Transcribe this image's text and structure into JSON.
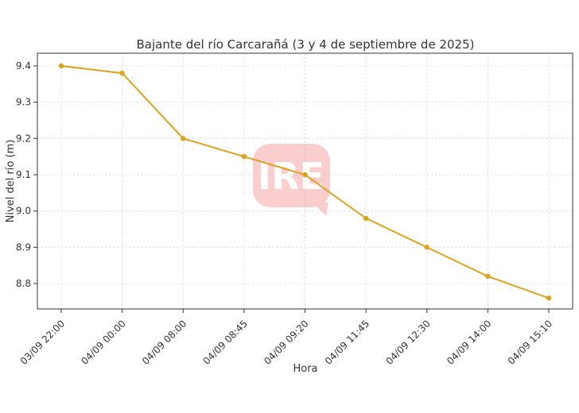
{
  "chart_data": {
    "type": "line",
    "title": "Bajante del río Carcarañá (3 y 4 de septiembre de 2025)",
    "xlabel": "Hora",
    "ylabel": "Nivel del río (m)",
    "categories": [
      "03/09 22:00",
      "04/09 00:00",
      "04/09 08:00",
      "04/09 08:45",
      "04/09 09:20",
      "04/09 11:45",
      "04/09 12:30",
      "04/09 14:00",
      "04/09 15:10"
    ],
    "series": [
      {
        "values": [
          9.4,
          9.38,
          9.2,
          9.15,
          9.1,
          8.98,
          8.9,
          8.82,
          8.76
        ],
        "color": "#E0A21B"
      }
    ],
    "ylim": [
      8.73,
      9.435
    ],
    "yticks": [
      8.8,
      8.9,
      9.0,
      9.1,
      9.2,
      9.3,
      9.4
    ],
    "grid": true,
    "legend": "none"
  },
  "watermark": {
    "text": "IRE",
    "color": "#f7a7a7"
  }
}
